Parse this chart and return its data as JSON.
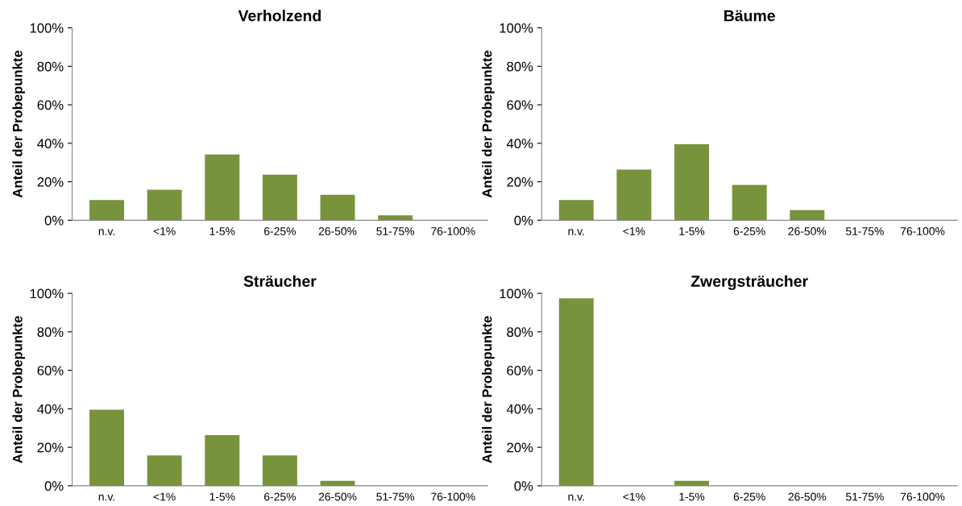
{
  "chart_data": [
    {
      "type": "bar",
      "title": "Verholzend",
      "ylabel": "Anteil der Probepunkte",
      "categories": [
        "n.v.",
        "<1%",
        "1-5%",
        "6-25%",
        "26-50%",
        "51-75%",
        "76-100%"
      ],
      "values": [
        10.5,
        15.8,
        34.2,
        23.7,
        13.2,
        2.6,
        0
      ],
      "color": "#77933c",
      "ylim": [
        0,
        100
      ],
      "yticks": [
        {
          "value": 0,
          "label": "0%"
        },
        {
          "value": 20,
          "label": "20%"
        },
        {
          "value": 40,
          "label": "40%"
        },
        {
          "value": 60,
          "label": "60%"
        },
        {
          "value": 80,
          "label": "80%"
        },
        {
          "value": 100,
          "label": "100%"
        }
      ]
    },
    {
      "type": "bar",
      "title": "Bäume",
      "ylabel": "Anteil der Probepunkte",
      "categories": [
        "n.v.",
        "<1%",
        "1-5%",
        "6-25%",
        "26-50%",
        "51-75%",
        "76-100%"
      ],
      "values": [
        10.5,
        26.3,
        39.5,
        18.4,
        5.3,
        0,
        0
      ],
      "color": "#77933c",
      "ylim": [
        0,
        100
      ],
      "yticks": [
        {
          "value": 0,
          "label": "0%"
        },
        {
          "value": 20,
          "label": "20%"
        },
        {
          "value": 40,
          "label": "40%"
        },
        {
          "value": 60,
          "label": "60%"
        },
        {
          "value": 80,
          "label": "80%"
        },
        {
          "value": 100,
          "label": "100%"
        }
      ]
    },
    {
      "type": "bar",
      "title": "Sträucher",
      "ylabel": "Anteil der Probepunkte",
      "categories": [
        "n.v.",
        "<1%",
        "1-5%",
        "6-25%",
        "26-50%",
        "51-75%",
        "76-100%"
      ],
      "values": [
        39.5,
        15.8,
        26.3,
        15.8,
        2.6,
        0,
        0
      ],
      "color": "#77933c",
      "ylim": [
        0,
        100
      ],
      "yticks": [
        {
          "value": 0,
          "label": "0%"
        },
        {
          "value": 20,
          "label": "20%"
        },
        {
          "value": 40,
          "label": "40%"
        },
        {
          "value": 60,
          "label": "60%"
        },
        {
          "value": 80,
          "label": "80%"
        },
        {
          "value": 100,
          "label": "100%"
        }
      ]
    },
    {
      "type": "bar",
      "title": "Zwergsträucher",
      "ylabel": "Anteil der Probepunkte",
      "categories": [
        "n.v.",
        "<1%",
        "1-5%",
        "6-25%",
        "26-50%",
        "51-75%",
        "76-100%"
      ],
      "values": [
        97.4,
        0,
        2.6,
        0,
        0,
        0,
        0
      ],
      "color": "#77933c",
      "ylim": [
        0,
        100
      ],
      "yticks": [
        {
          "value": 0,
          "label": "0%"
        },
        {
          "value": 20,
          "label": "20%"
        },
        {
          "value": 40,
          "label": "40%"
        },
        {
          "value": 60,
          "label": "60%"
        },
        {
          "value": 80,
          "label": "80%"
        },
        {
          "value": 100,
          "label": "100%"
        }
      ]
    }
  ]
}
